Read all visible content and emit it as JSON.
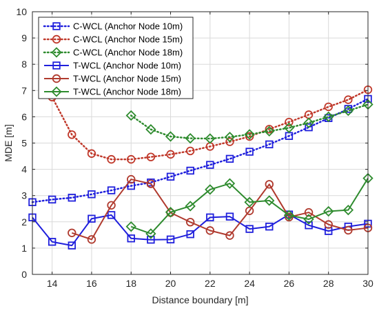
{
  "chart_data": {
    "type": "line",
    "xlabel": "Distance boundary [m]",
    "ylabel": "MDE [m]",
    "xlim": [
      13,
      30
    ],
    "ylim": [
      0,
      10
    ],
    "xticks": [
      14,
      16,
      18,
      20,
      22,
      24,
      26,
      28,
      30
    ],
    "yticks": [
      0,
      1,
      2,
      3,
      4,
      5,
      6,
      7,
      8,
      9,
      10
    ],
    "grid": true,
    "legend_position": "top-left",
    "series": [
      {
        "name": "C-WCL (Anchor Node 10m)",
        "color": "#1f1fdc",
        "line": "dotted",
        "marker": "square",
        "x": [
          13,
          14,
          15,
          16,
          17,
          18,
          19,
          20,
          21,
          22,
          23,
          24,
          25,
          26,
          27,
          28,
          29,
          30
        ],
        "y": [
          2.75,
          2.85,
          2.92,
          3.05,
          3.2,
          3.37,
          3.5,
          3.72,
          3.95,
          4.17,
          4.4,
          4.67,
          4.95,
          5.27,
          5.6,
          5.95,
          6.3,
          6.68
        ]
      },
      {
        "name": "C-WCL (Anchor Node 15m)",
        "color": "#c0392b",
        "line": "dotted",
        "marker": "circle",
        "x": [
          14,
          15,
          16,
          17,
          18,
          19,
          20,
          21,
          22,
          23,
          24,
          25,
          26,
          27,
          28,
          29,
          30
        ],
        "y": [
          6.75,
          5.32,
          4.6,
          4.38,
          4.38,
          4.47,
          4.57,
          4.7,
          4.87,
          5.05,
          5.25,
          5.53,
          5.8,
          6.08,
          6.38,
          6.65,
          7.03
        ]
      },
      {
        "name": "C-WCL (Anchor Node 18m)",
        "color": "#2e8b2e",
        "line": "dotted",
        "marker": "diamond",
        "x": [
          18,
          19,
          20,
          21,
          22,
          23,
          24,
          25,
          26,
          27,
          28,
          29,
          30
        ],
        "y": [
          6.05,
          5.52,
          5.25,
          5.18,
          5.17,
          5.23,
          5.33,
          5.45,
          5.58,
          5.77,
          6.0,
          6.23,
          6.47
        ]
      },
      {
        "name": "T-WCL (Anchor Node 10m)",
        "color": "#1f1fdc",
        "line": "solid",
        "marker": "square",
        "x": [
          13,
          14,
          15,
          16,
          17,
          18,
          19,
          20,
          21,
          22,
          23,
          24,
          25,
          26,
          27,
          28,
          29,
          30
        ],
        "y": [
          2.17,
          1.24,
          1.1,
          2.12,
          2.26,
          1.37,
          1.32,
          1.33,
          1.53,
          2.17,
          2.2,
          1.73,
          1.82,
          2.28,
          1.87,
          1.65,
          1.82,
          1.93
        ]
      },
      {
        "name": "T-WCL (Anchor Node 15m)",
        "color": "#b03a2e",
        "line": "solid",
        "marker": "circle",
        "x": [
          15,
          16,
          17,
          18,
          19,
          20,
          21,
          22,
          23,
          24,
          25,
          26,
          27,
          28,
          29,
          30
        ],
        "y": [
          1.58,
          1.33,
          2.63,
          3.62,
          3.45,
          2.35,
          1.99,
          1.67,
          1.48,
          2.42,
          3.43,
          2.18,
          2.36,
          1.9,
          1.68,
          1.77
        ]
      },
      {
        "name": "T-WCL (Anchor Node 18m)",
        "color": "#2e8b2e",
        "line": "solid",
        "marker": "diamond",
        "x": [
          18,
          19,
          20,
          21,
          22,
          23,
          24,
          25,
          26,
          27,
          28,
          29,
          30
        ],
        "y": [
          1.82,
          1.55,
          2.37,
          2.6,
          3.23,
          3.46,
          2.75,
          2.81,
          2.25,
          2.1,
          2.4,
          2.45,
          3.66
        ]
      }
    ]
  }
}
